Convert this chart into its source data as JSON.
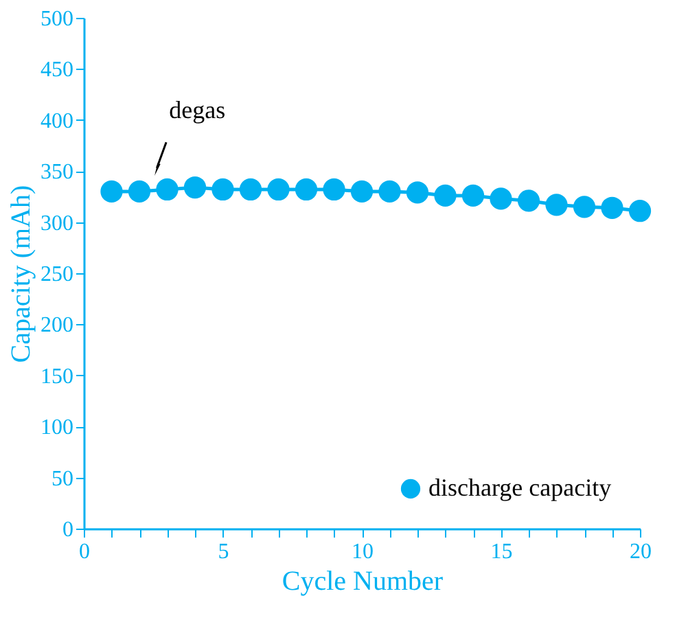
{
  "chart_data": {
    "type": "line",
    "xlabel": "Cycle Number",
    "ylabel": "Capacity (mAh)",
    "x": [
      1,
      2,
      3,
      4,
      5,
      6,
      7,
      8,
      9,
      10,
      11,
      12,
      13,
      14,
      15,
      16,
      17,
      18,
      19,
      20
    ],
    "series": [
      {
        "name": "discharge capacity",
        "color": "#00b0f0",
        "values": [
          330,
          330,
          332,
          334,
          332,
          332,
          332,
          332,
          332,
          330,
          330,
          329,
          326,
          326,
          323,
          321,
          317,
          315,
          314,
          311
        ]
      }
    ],
    "xlim": [
      0,
      20
    ],
    "xticks": [
      0,
      {
        "value": 1,
        "label": null
      },
      {
        "value": 2,
        "label": null
      },
      {
        "value": 3,
        "label": null
      },
      {
        "value": 4,
        "label": null
      },
      5,
      {
        "value": 6,
        "label": null
      },
      {
        "value": 7,
        "label": null
      },
      {
        "value": 8,
        "label": null
      },
      {
        "value": 9,
        "label": null
      },
      10,
      {
        "value": 11,
        "label": null
      },
      {
        "value": 12,
        "label": null
      },
      {
        "value": 13,
        "label": null
      },
      {
        "value": 14,
        "label": null
      },
      15,
      {
        "value": 16,
        "label": null
      },
      {
        "value": 17,
        "label": null
      },
      {
        "value": 18,
        "label": null
      },
      {
        "value": 19,
        "label": null
      },
      20
    ],
    "ylim": [
      0,
      500
    ],
    "yticks": [
      0,
      50,
      100,
      150,
      200,
      250,
      300,
      350,
      400,
      450,
      500
    ],
    "annotations": [
      {
        "text": "degas",
        "x": 2.5,
        "y": 336
      }
    ],
    "marker": "circle",
    "line_style": "solid",
    "grid": false,
    "legend": "bottom right"
  }
}
